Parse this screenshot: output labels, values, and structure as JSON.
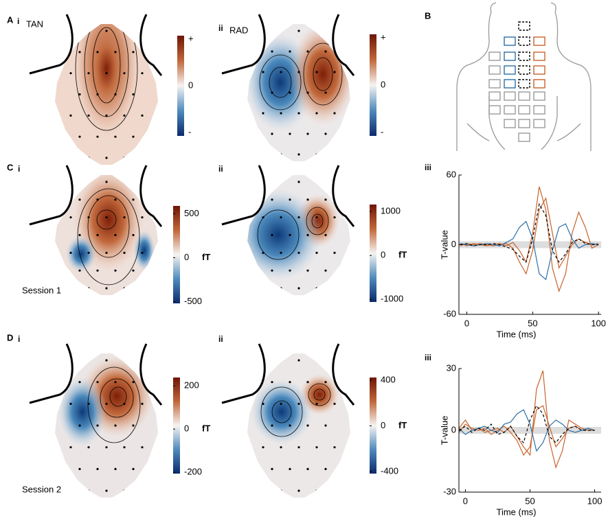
{
  "figure": {
    "panel_labels": [
      "A",
      "B",
      "C",
      "D"
    ],
    "sub_labels": [
      "i",
      "ii",
      "i",
      "ii",
      "iii",
      "i",
      "ii",
      "iii"
    ],
    "titles": [
      "TAN",
      "RAD"
    ],
    "sessions": [
      "Session 1",
      "Session 2"
    ],
    "colorbars": [
      {
        "ticks": [
          "+",
          "0",
          "-"
        ]
      },
      {
        "ticks": [
          "+",
          "0",
          "-"
        ]
      },
      {
        "clim": [
          -520,
          590
        ],
        "ticks": [
          500,
          0,
          -500
        ],
        "unit": "fT"
      },
      {
        "clim": [
          -1060,
          1160
        ],
        "ticks": [
          1000,
          0,
          -1000
        ],
        "unit": "fT"
      },
      {
        "clim": [
          -206,
          239
        ],
        "ticks": [
          200,
          0,
          -200
        ],
        "unit": "fT"
      },
      {
        "clim": [
          -419,
          425
        ],
        "ticks": [
          400,
          0,
          -400
        ],
        "unit": "fT"
      }
    ]
  },
  "chart_data": [
    {
      "type": "line",
      "xlabel": "Time (ms)",
      "ylabel": "T-value",
      "x": [
        -5,
        0,
        5,
        10,
        15,
        20,
        25,
        30,
        35,
        40,
        45,
        50,
        55,
        60,
        65,
        70,
        75,
        80,
        85,
        90,
        95,
        100
      ],
      "xlim": [
        -6,
        102
      ],
      "xticks": [
        0,
        50,
        100
      ],
      "ylim": [
        -60,
        60
      ],
      "yticks": [
        60,
        0,
        -60
      ],
      "series": [
        {
          "color": "#c8622a",
          "values": [
            1,
            -1,
            1,
            0,
            -1,
            0,
            1,
            -1,
            2,
            -5,
            -15,
            10,
            50,
            30,
            -20,
            -40,
            -25,
            10,
            28,
            15,
            -3,
            0
          ]
        },
        {
          "color": "#c8622a",
          "values": [
            -1,
            1,
            0,
            1,
            0,
            -1,
            0,
            1,
            -3,
            -15,
            -25,
            -5,
            30,
            40,
            10,
            -20,
            -10,
            0,
            5,
            2,
            0,
            1
          ]
        },
        {
          "color": "#2a6fa8",
          "values": [
            1,
            0,
            -1,
            0,
            1,
            0,
            -1,
            2,
            5,
            15,
            20,
            5,
            -25,
            -30,
            -5,
            15,
            18,
            5,
            -3,
            0,
            1,
            0
          ]
        },
        {
          "color": "#000000",
          "line_style": "dashed",
          "values": [
            0,
            1,
            -1,
            0,
            0,
            1,
            0,
            -2,
            -4,
            -10,
            -15,
            5,
            35,
            25,
            -5,
            -15,
            -8,
            2,
            5,
            1,
            0,
            0
          ]
        }
      ]
    },
    {
      "type": "line",
      "xlabel": "Time (ms)",
      "ylabel": "T-value",
      "x": [
        -5,
        0,
        5,
        10,
        15,
        20,
        25,
        30,
        35,
        40,
        45,
        50,
        55,
        60,
        65,
        70,
        75,
        80,
        85,
        90,
        95,
        100
      ],
      "xlim": [
        -5,
        105
      ],
      "xticks": [
        0,
        50,
        100
      ],
      "ylim": [
        -30,
        30
      ],
      "yticks": [
        30,
        0,
        -30
      ],
      "series": [
        {
          "color": "#c8622a",
          "values": [
            1,
            5,
            0,
            1,
            -1,
            0,
            1,
            -1,
            2,
            -3,
            -8,
            -12,
            20,
            29,
            -5,
            -18,
            -10,
            5,
            3,
            1,
            0,
            0
          ]
        },
        {
          "color": "#c8622a",
          "values": [
            -1,
            3,
            1,
            0,
            1,
            -2,
            0,
            2,
            -1,
            -5,
            -12,
            -8,
            10,
            12,
            2,
            -8,
            -4,
            1,
            2,
            0,
            1,
            0
          ]
        },
        {
          "color": "#2a6fa8",
          "values": [
            1,
            -2,
            0,
            1,
            2,
            0,
            -1,
            3,
            4,
            8,
            10,
            3,
            -10,
            -6,
            2,
            5,
            3,
            0,
            -1,
            0,
            1,
            0
          ]
        },
        {
          "color": "#000000",
          "line_style": "dashed",
          "values": [
            0,
            2,
            -1,
            1,
            0,
            3,
            -2,
            -1,
            2,
            -3,
            -6,
            5,
            12,
            8,
            -3,
            -6,
            -2,
            1,
            2,
            0,
            0,
            0
          ]
        }
      ]
    }
  ]
}
